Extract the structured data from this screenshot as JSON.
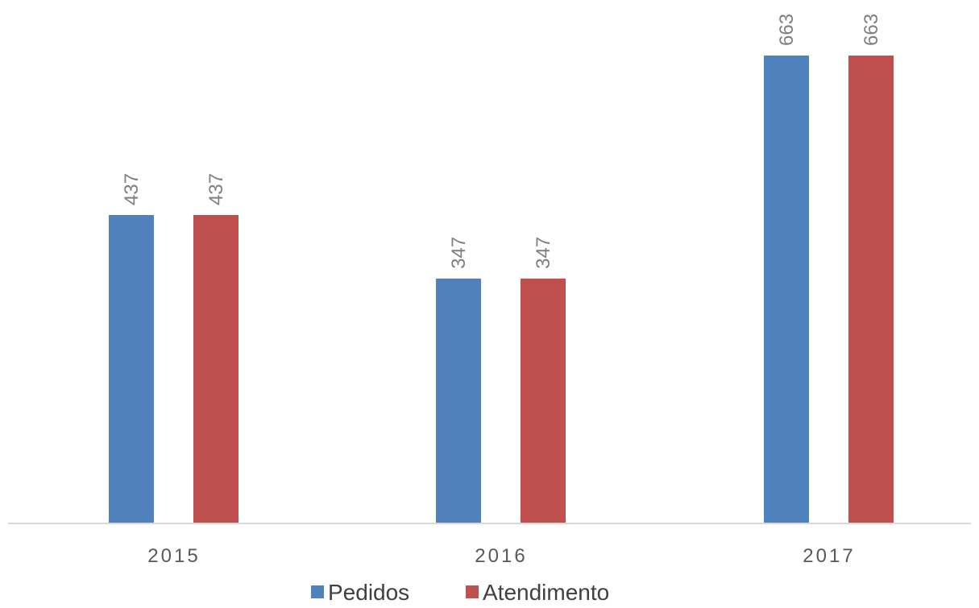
{
  "chart_data": {
    "type": "bar",
    "categories": [
      "2015",
      "2016",
      "2017"
    ],
    "series": [
      {
        "name": "Pedidos",
        "values": [
          437,
          347,
          663
        ],
        "color": "#4F81BD"
      },
      {
        "name": "Atendimento",
        "values": [
          437,
          347,
          663
        ],
        "color": "#C0504D"
      }
    ],
    "ylim": [
      0,
      663
    ],
    "grid": false,
    "legend": "bottom",
    "data_labels": "rotated-vertical",
    "axis_color": "#D9D9D9"
  }
}
